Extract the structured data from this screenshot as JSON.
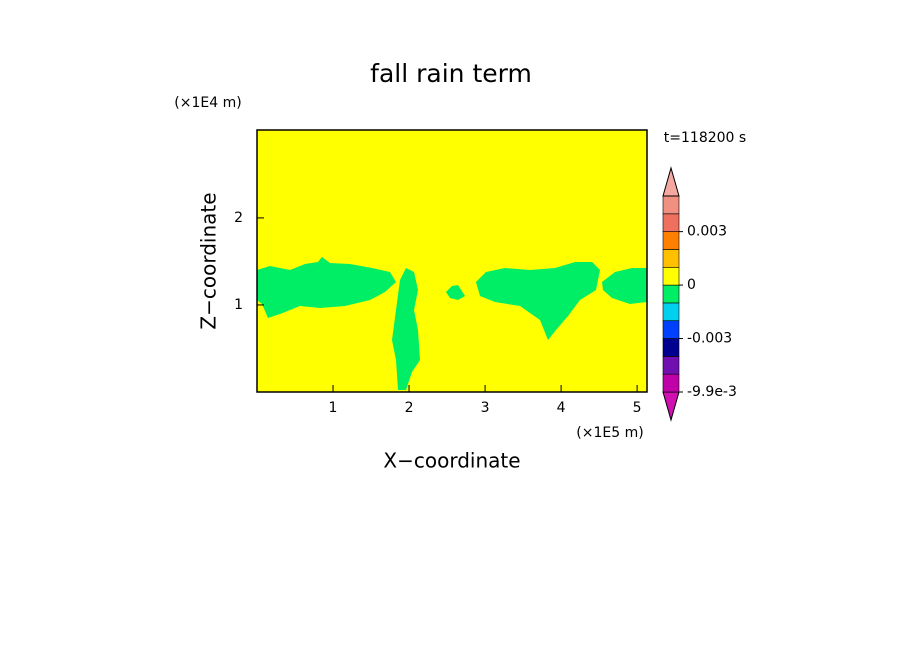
{
  "chart_data": {
    "type": "contour",
    "title": "fall rain term",
    "xlabel": "X−coordinate",
    "ylabel": "Z−coordinate",
    "xunit": "(×1E5 m)",
    "yunit": "(×1E4 m)",
    "annotation": "t=118200 s",
    "xlim": [
      0,
      5.13
    ],
    "ylim": [
      0,
      3.01
    ],
    "xticks": [
      1,
      2,
      3,
      4,
      5
    ],
    "yticks": [
      1,
      2
    ],
    "background_color": "#ffff00",
    "colorbar": {
      "levels": [
        -0.0099,
        -0.0065,
        -0.004,
        -0.003,
        -0.002,
        -0.001,
        0,
        0.001,
        0.002,
        0.003,
        0.0045,
        0.006
      ],
      "colors": [
        "#d010b0",
        "#c000a8",
        "#7010b0",
        "#000090",
        "#0040ff",
        "#00d0f0",
        "#00ee66",
        "#ffff00",
        "#ffc000",
        "#ff8000",
        "#f07060",
        "#f09080",
        "#f4a8a0"
      ],
      "ticks": [
        {
          "value": -0.0099,
          "label": "-9.9e-3"
        },
        -0.003,
        0,
        0.003
      ]
    }
  }
}
